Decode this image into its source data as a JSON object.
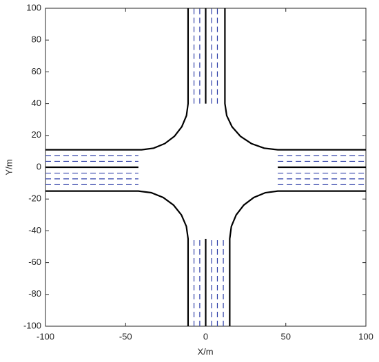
{
  "chart_data": {
    "type": "line",
    "xlabel": "X/m",
    "ylabel": "Y/m",
    "xlim": [
      -100,
      100
    ],
    "ylim": [
      -100,
      100
    ],
    "xticks": [
      -100,
      -50,
      0,
      50,
      100
    ],
    "yticks": [
      -100,
      -80,
      -60,
      -40,
      -20,
      0,
      20,
      40,
      60,
      80,
      100
    ],
    "grid": false,
    "series": [
      {
        "color": "#000000",
        "line_style": "solid",
        "x": [
          -11,
          -11,
          -11.99,
          -14.89,
          -19.49,
          -25.5,
          -32.49,
          -40,
          -100,
          null,
          12,
          12,
          13.12,
          16.42,
          21.67,
          28.5,
          36.46,
          45,
          100,
          null,
          -11,
          -11,
          -12.06,
          -15.15,
          -20.08,
          -26.5,
          -33.98,
          -42,
          -100,
          null,
          15,
          15,
          16.02,
          19.02,
          23.79,
          30,
          37.23,
          45,
          100,
          null,
          0,
          0,
          null,
          0,
          0,
          null,
          -100,
          -42,
          null,
          45,
          100
        ],
        "values": [
          100,
          40,
          32.49,
          25.5,
          19.49,
          14.89,
          11.99,
          11,
          11,
          null,
          100,
          40,
          32.49,
          25.5,
          19.49,
          14.89,
          11.99,
          11,
          11,
          null,
          -100,
          -45,
          -37.23,
          -30,
          -23.79,
          -19.02,
          -16.02,
          -15,
          -15,
          null,
          -100,
          -45,
          -37.23,
          -30,
          -23.79,
          -19.02,
          -16.02,
          -15,
          -15,
          null,
          40,
          100,
          null,
          -100,
          -45,
          null,
          0,
          0,
          null,
          0,
          0
        ]
      },
      {
        "color": "#2e3fa8",
        "line_style": "dashed",
        "x": [
          -7.3,
          -7.3,
          null,
          -3.7,
          -3.7,
          null,
          3.7,
          3.7,
          null,
          7.3,
          7.3,
          null,
          -7.3,
          -7.3,
          null,
          -3.7,
          -3.7,
          null,
          3.7,
          3.7,
          null,
          7.3,
          7.3,
          null,
          11,
          11,
          null,
          -100,
          -42,
          null,
          -100,
          -42,
          null,
          -100,
          -42,
          null,
          -100,
          -42,
          null,
          -100,
          -42,
          null,
          45,
          100,
          null,
          45,
          100,
          null,
          45,
          100,
          null,
          45,
          100,
          null,
          45,
          100
        ],
        "values": [
          40,
          100,
          null,
          40,
          100,
          null,
          40,
          100,
          null,
          40,
          100,
          null,
          -100,
          -45,
          null,
          -100,
          -45,
          null,
          -100,
          -45,
          null,
          -100,
          -45,
          null,
          -100,
          -45,
          null,
          7.3,
          7.3,
          null,
          3.7,
          3.7,
          null,
          -3.7,
          -3.7,
          null,
          -7.3,
          -7.3,
          null,
          -11,
          -11,
          null,
          7.3,
          7.3,
          null,
          3.7,
          3.7,
          null,
          -3.7,
          -3.7,
          null,
          -7.3,
          -7.3,
          null,
          -11,
          -11
        ]
      }
    ]
  }
}
